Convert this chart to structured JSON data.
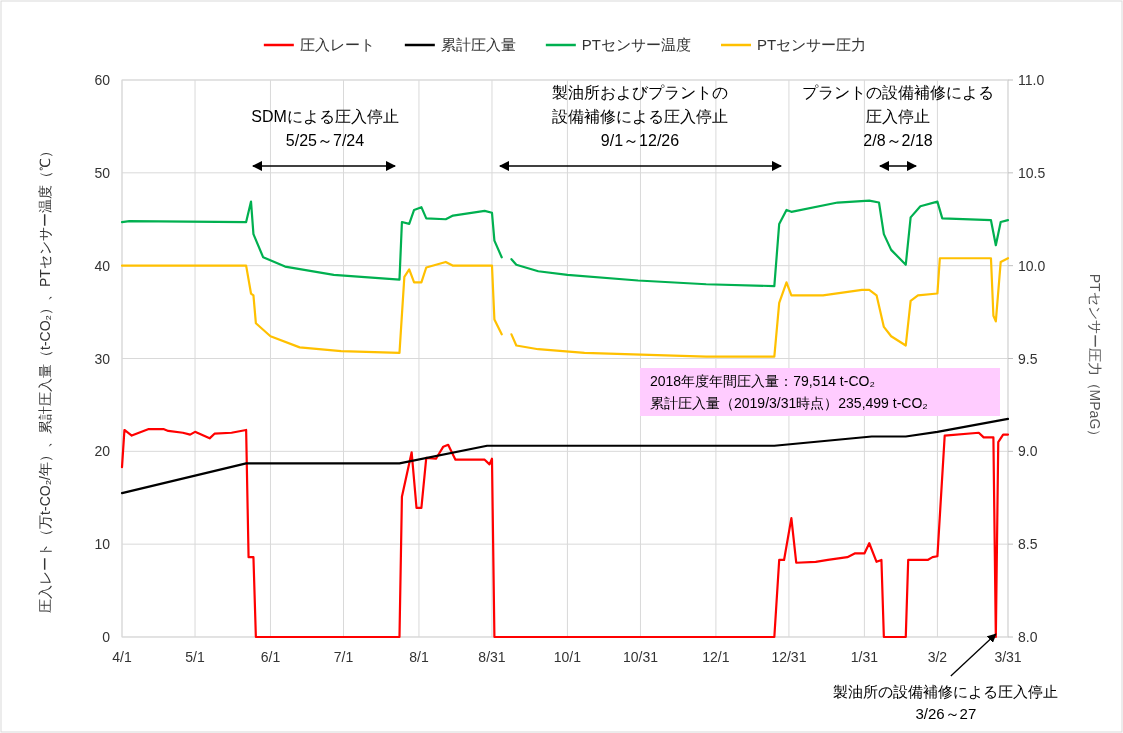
{
  "chart_data": {
    "type": "line",
    "ylabel": "圧入レート（万t-CO₂/年）、累計圧入量（t-CO₂）、PTセンサー温度（℃）",
    "y2label": "PTセンサー圧力（MPaG）",
    "xlim": [
      "2018-04-01",
      "2019-03-31"
    ],
    "xticks": [
      {
        "value": "2018-04-01",
        "label": "4/1"
      },
      {
        "value": "2018-05-01",
        "label": "5/1"
      },
      {
        "value": "2018-06-01",
        "label": "6/1"
      },
      {
        "value": "2018-07-01",
        "label": "7/1"
      },
      {
        "value": "2018-08-01",
        "label": "8/1"
      },
      {
        "value": "2018-08-31",
        "label": "8/31"
      },
      {
        "value": "2018-10-01",
        "label": "10/1"
      },
      {
        "value": "2018-10-31",
        "label": "10/31"
      },
      {
        "value": "2018-12-01",
        "label": "12/1"
      },
      {
        "value": "2018-12-31",
        "label": "12/31"
      },
      {
        "value": "2019-01-31",
        "label": "1/31"
      },
      {
        "value": "2019-03-02",
        "label": "3/2"
      },
      {
        "value": "2019-03-31",
        "label": "3/31"
      }
    ],
    "ylim": [
      0,
      60
    ],
    "yticks": [
      0,
      10,
      20,
      30,
      40,
      50,
      60
    ],
    "y2lim": [
      8,
      11
    ],
    "y2ticks": [
      {
        "value": 8,
        "label": "8.0"
      },
      {
        "value": 8.5,
        "label": "8.5"
      },
      {
        "value": 9,
        "label": "9.0"
      },
      {
        "value": 9.5,
        "label": "9.5"
      },
      {
        "value": 10,
        "label": "10.0"
      },
      {
        "value": 10.5,
        "label": "10.5"
      },
      {
        "value": 11,
        "label": "11.0"
      }
    ],
    "grid": true,
    "legend": "top",
    "series": [
      {
        "name": "圧入レート",
        "color": "#ff0000",
        "x": [
          "2018-04-01",
          "2018-04-02",
          "2018-04-05",
          "2018-04-12",
          "2018-04-18",
          "2018-04-20",
          "2018-04-26",
          "2018-04-29",
          "2018-05-01",
          "2018-05-07",
          "2018-05-09",
          "2018-05-16",
          "2018-05-22",
          "2018-05-23",
          "2018-05-25",
          "2018-05-26",
          "2018-07-24",
          "2018-07-25",
          "2018-07-29",
          "2018-07-31",
          "2018-08-02",
          "2018-08-04",
          "2018-08-08",
          "2018-08-11",
          "2018-08-13",
          "2018-08-16",
          "2018-08-28",
          "2018-08-30",
          "2018-08-31",
          "2018-09-01",
          "2018-12-25",
          "2018-12-27",
          "2018-12-29",
          "2019-01-01",
          "2019-01-03",
          "2019-01-11",
          "2019-01-16",
          "2019-01-24",
          "2019-01-27",
          "2019-01-31",
          "2019-02-02",
          "2019-02-05",
          "2019-02-07",
          "2019-02-08",
          "2019-02-17",
          "2019-02-18",
          "2019-02-26",
          "2019-02-28",
          "2019-03-02",
          "2019-03-05",
          "2019-03-19",
          "2019-03-21",
          "2019-03-25",
          "2019-03-26",
          "2019-03-27",
          "2019-03-29",
          "2019-03-31"
        ],
        "values": [
          18.3,
          22.3,
          21.7,
          22.4,
          22.4,
          22.2,
          22.0,
          21.8,
          22.1,
          21.4,
          21.9,
          22.0,
          22.3,
          8.6,
          8.6,
          0,
          0,
          15.1,
          19.9,
          13.9,
          13.9,
          19.3,
          19.2,
          20.5,
          20.7,
          19.1,
          19.1,
          18.6,
          19.2,
          0,
          0,
          8.3,
          8.3,
          12.8,
          8.0,
          8.1,
          8.3,
          8.6,
          9.0,
          9.0,
          10.1,
          8.1,
          8.3,
          0,
          0,
          8.3,
          8.3,
          8.6,
          8.7,
          21.7,
          22.0,
          21.5,
          21.5,
          0,
          21.0,
          21.8,
          21.8
        ]
      },
      {
        "name": "累計圧入量",
        "color": "#000000",
        "x": [
          "2018-04-01",
          "2018-05-22",
          "2018-07-24",
          "2018-08-29",
          "2018-12-25",
          "2019-02-03",
          "2019-02-17",
          "2019-03-02",
          "2019-03-31"
        ],
        "values": [
          15.5,
          18.7,
          18.7,
          20.6,
          20.6,
          21.6,
          21.6,
          22.1,
          23.5
        ]
      },
      {
        "name": "PTセンサー温度",
        "color": "#00b050",
        "x": [
          "2018-04-01",
          "2018-04-04",
          "2018-05-22",
          "2018-05-24",
          "2018-05-25",
          "2018-05-29",
          "2018-06-07",
          "2018-06-27",
          "2018-07-24",
          "2018-07-25",
          "2018-07-28",
          "2018-07-30",
          "2018-08-02",
          "2018-08-04",
          "2018-08-12",
          "2018-08-15",
          "2018-08-28",
          "2018-08-31",
          "2018-09-01",
          "2018-09-04"
        ],
        "values": [
          44.7,
          44.8,
          44.7,
          46.9,
          43.4,
          40.9,
          39.9,
          39.0,
          38.5,
          44.7,
          44.5,
          46.0,
          46.3,
          45.1,
          45.0,
          45.4,
          45.9,
          45.7,
          42.7,
          40.9
        ]
      },
      {
        "color": "#00b050",
        "x": [
          "2018-09-08",
          "2018-09-10",
          "2018-09-19",
          "2018-10-01",
          "2018-10-30",
          "2018-11-27",
          "2018-12-25",
          "2018-12-27",
          "2018-12-30",
          "2019-01-01",
          "2019-01-20",
          "2019-02-02",
          "2019-02-06",
          "2019-02-08",
          "2019-02-11",
          "2019-02-17",
          "2019-02-19",
          "2019-02-23",
          "2019-03-02",
          "2019-03-04",
          "2019-03-24",
          "2019-03-26",
          "2019-03-28",
          "2019-03-31"
        ],
        "values": [
          40.7,
          40.1,
          39.4,
          39.0,
          38.4,
          38.0,
          37.8,
          44.5,
          46.0,
          45.8,
          46.8,
          47.0,
          46.8,
          43.4,
          41.7,
          40.1,
          45.2,
          46.4,
          46.9,
          45.1,
          44.9,
          42.2,
          44.7,
          44.9
        ]
      },
      {
        "name": "PTセンサー圧力",
        "color": "#ffc000",
        "axis": "y2",
        "x": [
          "2018-04-01",
          "2018-05-22",
          "2018-05-24",
          "2018-05-25",
          "2018-05-26",
          "2018-06-01",
          "2018-06-13",
          "2018-06-30",
          "2018-07-24",
          "2018-07-26",
          "2018-07-28",
          "2018-07-30",
          "2018-08-02",
          "2018-08-04",
          "2018-08-12",
          "2018-08-15",
          "2018-08-31",
          "2018-09-01",
          "2018-09-04"
        ],
        "values": [
          10.0,
          10.0,
          9.85,
          9.84,
          9.69,
          9.62,
          9.56,
          9.54,
          9.53,
          9.94,
          9.98,
          9.91,
          9.91,
          9.99,
          10.02,
          10.0,
          10.0,
          9.71,
          9.63
        ]
      },
      {
        "color": "#ffc000",
        "axis": "y2",
        "x": [
          "2018-09-08",
          "2018-09-10",
          "2018-09-19",
          "2018-10-08",
          "2018-11-27",
          "2018-12-25",
          "2018-12-27",
          "2018-12-30",
          "2019-01-01",
          "2019-01-14",
          "2019-01-30",
          "2019-02-02",
          "2019-02-05",
          "2019-02-08",
          "2019-02-11",
          "2019-02-17",
          "2019-02-19",
          "2019-02-22",
          "2019-03-02",
          "2019-03-03",
          "2019-03-24",
          "2019-03-25",
          "2019-03-26",
          "2019-03-28",
          "2019-03-31"
        ],
        "values": [
          9.63,
          9.57,
          9.55,
          9.53,
          9.51,
          9.51,
          9.8,
          9.91,
          9.84,
          9.84,
          9.87,
          9.87,
          9.84,
          9.67,
          9.62,
          9.57,
          9.81,
          9.84,
          9.85,
          10.04,
          10.04,
          9.73,
          9.7,
          10.02,
          10.04
        ]
      }
    ],
    "annotations": [
      "SDMによる圧入停止\n5/25～7/24",
      "製油所およびプラントの設備補修による圧入停止\n9/1～12/26",
      "プラントの設備補修による圧入停止\n2/8～2/18",
      "2018年度年間圧入量：79,514 t-CO₂\n累計圧入量（2019/3/31時点）235,499 t-CO₂",
      {
        "text": "製油所の設備補修による圧入停止\n3/26～27",
        "x": "2019-03-26",
        "y": 0
      }
    ]
  }
}
